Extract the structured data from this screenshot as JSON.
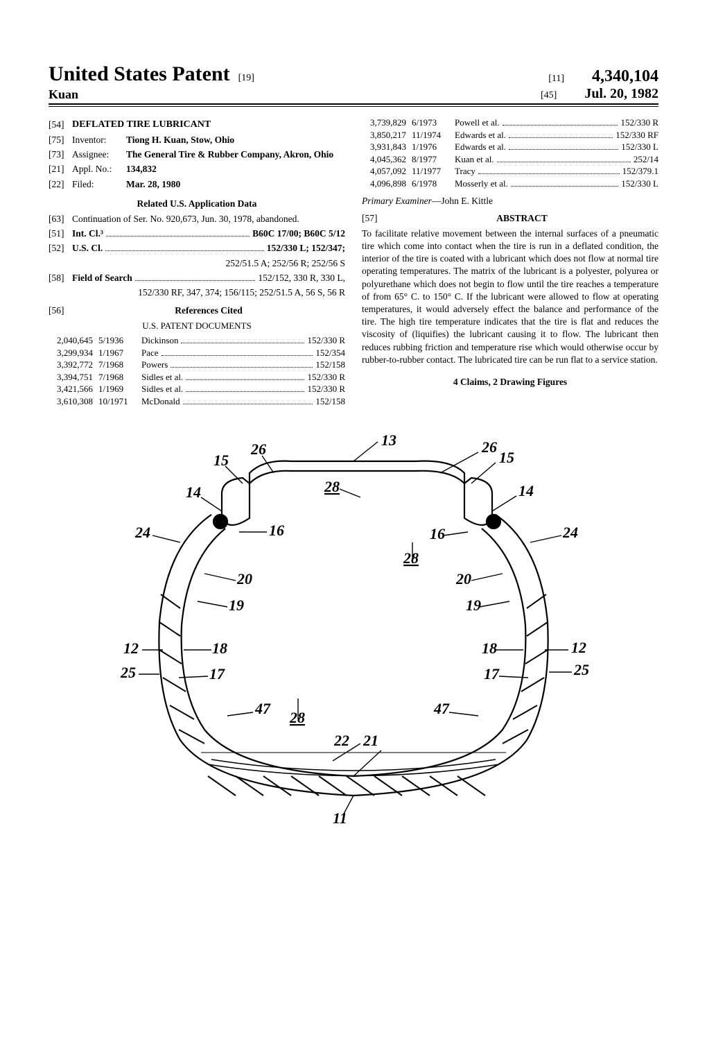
{
  "header": {
    "main_title": "United States Patent",
    "title_code": "[19]",
    "inventor_surname": "Kuan",
    "pub_code_11": "[11]",
    "patent_number": "4,340,104",
    "pub_code_45": "[45]",
    "pub_date": "Jul. 20, 1982"
  },
  "fields": {
    "f54_code": "[54]",
    "f54_title": "DEFLATED TIRE LUBRICANT",
    "f75_code": "[75]",
    "f75_label": "Inventor:",
    "f75_value": "Tiong H. Kuan, Stow, Ohio",
    "f73_code": "[73]",
    "f73_label": "Assignee:",
    "f73_value": "The General Tire & Rubber Company, Akron, Ohio",
    "f21_code": "[21]",
    "f21_label": "Appl. No.:",
    "f21_value": "134,832",
    "f22_code": "[22]",
    "f22_label": "Filed:",
    "f22_value": "Mar. 28, 1980",
    "related_hdr": "Related U.S. Application Data",
    "f63_code": "[63]",
    "f63_value": "Continuation of Ser. No. 920,673, Jun. 30, 1978, abandoned.",
    "f51_code": "[51]",
    "f51_lead": "Int. Cl.³",
    "f51_trail": "B60C 17/00; B60C 5/12",
    "f52_code": "[52]",
    "f52_lead": "U.S. Cl.",
    "f52_trail": "152/330 L; 152/347;",
    "f52_cont": "252/51.5 A; 252/56 R; 252/56 S",
    "f58_code": "[58]",
    "f58_lead": "Field of Search",
    "f58_trail": "152/152, 330 R, 330 L,",
    "f58_cont": "152/330 RF, 347, 374; 156/115; 252/51.5 A, 56 S, 56 R",
    "f56_code": "[56]",
    "f56_hdr": "References Cited",
    "us_pat_hdr": "U.S. PATENT DOCUMENTS"
  },
  "refs_left": [
    {
      "num": "2,040,645",
      "date": "5/1936",
      "name": "Dickinson",
      "cls": "152/330 R"
    },
    {
      "num": "3,299,934",
      "date": "1/1967",
      "name": "Pace",
      "cls": "152/354"
    },
    {
      "num": "3,392,772",
      "date": "7/1968",
      "name": "Powers",
      "cls": "152/158"
    },
    {
      "num": "3,394,751",
      "date": "7/1968",
      "name": "Sidles et al.",
      "cls": "152/330 R"
    },
    {
      "num": "3,421,566",
      "date": "1/1969",
      "name": "Sidles et al.",
      "cls": "152/330 R"
    },
    {
      "num": "3,610,308",
      "date": "10/1971",
      "name": "McDonald",
      "cls": "152/158"
    }
  ],
  "refs_right": [
    {
      "num": "3,739,829",
      "date": "6/1973",
      "name": "Powell et al.",
      "cls": "152/330 R"
    },
    {
      "num": "3,850,217",
      "date": "11/1974",
      "name": "Edwards et al.",
      "cls": "152/330 RF"
    },
    {
      "num": "3,931,843",
      "date": "1/1976",
      "name": "Edwards et al.",
      "cls": "152/330 L"
    },
    {
      "num": "4,045,362",
      "date": "8/1977",
      "name": "Kuan et al.",
      "cls": "252/14"
    },
    {
      "num": "4,057,092",
      "date": "11/1977",
      "name": "Tracy",
      "cls": "152/379.1"
    },
    {
      "num": "4,096,898",
      "date": "6/1978",
      "name": "Mosserly et al.",
      "cls": "152/330 L"
    }
  ],
  "examiner_label": "Primary Examiner",
  "examiner_value": "—John E. Kittle",
  "abstract_code": "[57]",
  "abstract_hdr": "ABSTRACT",
  "abstract_body": "To facilitate relative movement between the internal surfaces of a pneumatic tire which come into contact when the tire is run in a deflated condition, the interior of the tire is coated with a lubricant which does not flow at normal tire operating temperatures. The matrix of the lubricant is a polyester, polyurea or polyurethane which does not begin to flow until the tire reaches a temperature of from 65° C. to 150° C. If the lubricant were allowed to flow at operating temperatures, it would adversely effect the balance and performance of the tire. The high tire temperature indicates that the tire is flat and reduces the viscosity of (liquifies) the lubricant causing it to flow. The lubricant then reduces rubbing friction and temperature rise which would otherwise occur by rubber-to-rubber contact. The lubricated tire can be run flat to a service station.",
  "claims_line": "4 Claims, 2 Drawing Figures",
  "figure": {
    "labels": [
      "11",
      "12",
      "13",
      "14",
      "15",
      "16",
      "17",
      "18",
      "19",
      "20",
      "21",
      "22",
      "24",
      "25",
      "26",
      "28",
      "47"
    ]
  }
}
